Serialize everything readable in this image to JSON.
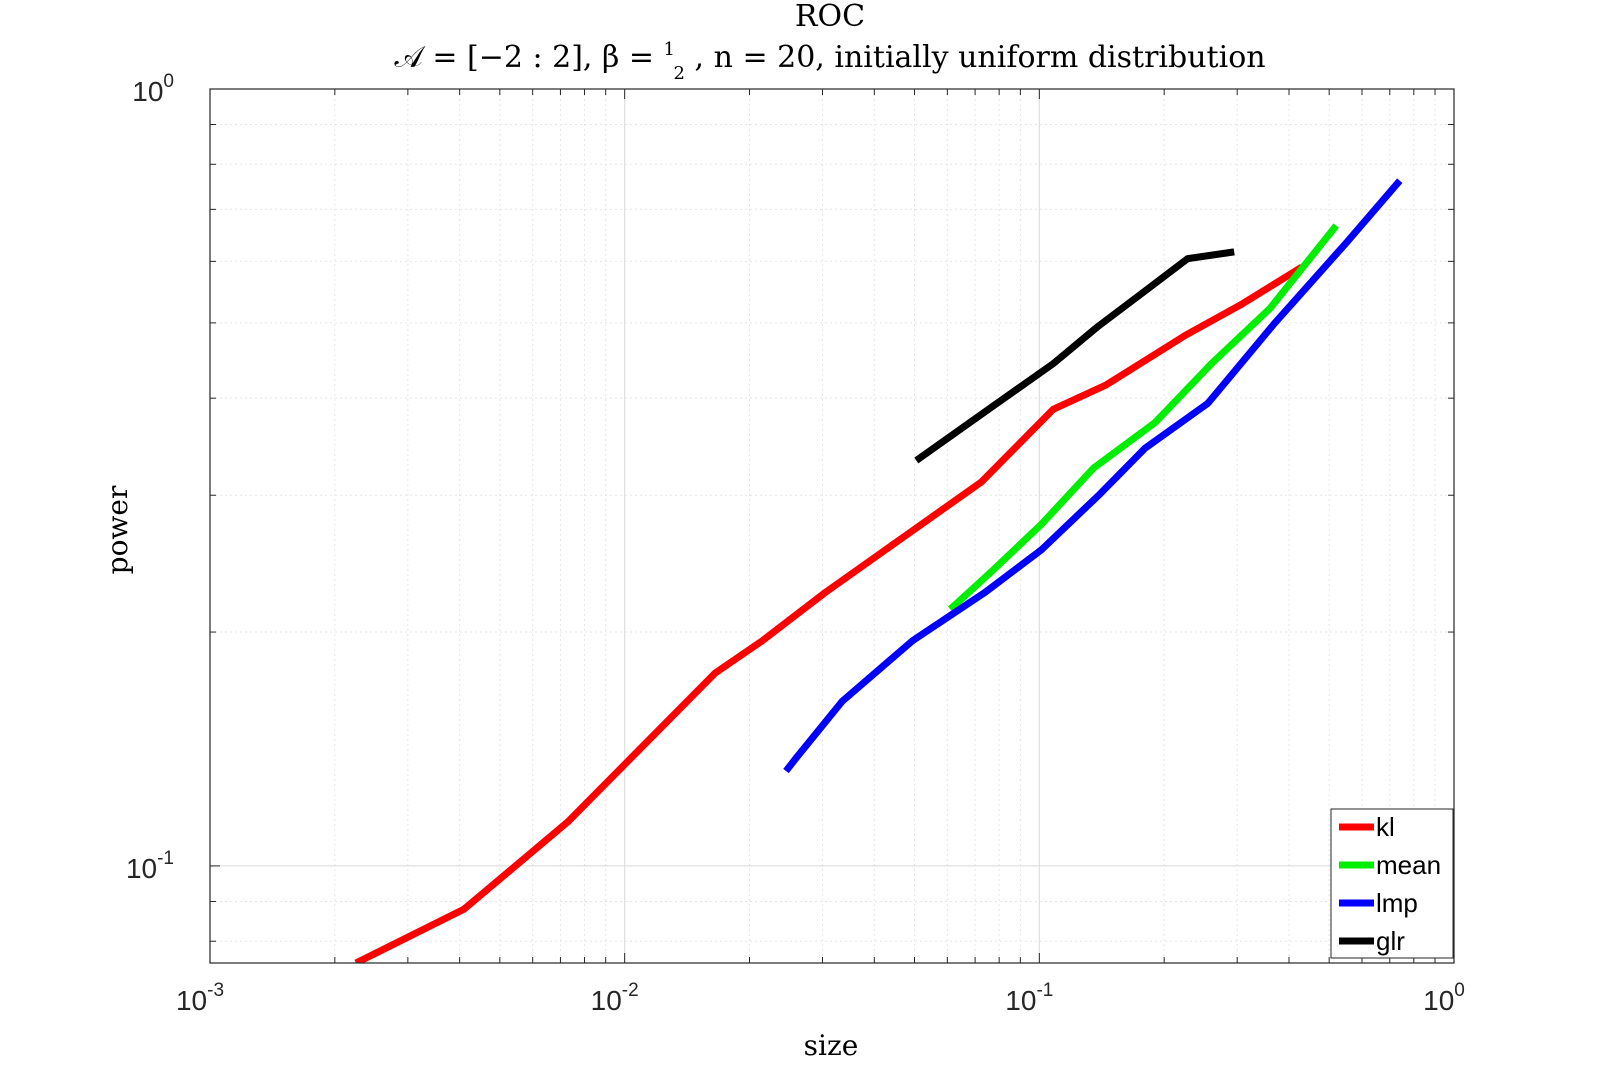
{
  "chart_data": {
    "type": "line",
    "title": "ROC",
    "subtitle": {
      "part1": "𝒜 = [−2 : 2], β = ",
      "frac_num": "1",
      "frac_den": "2",
      "part2": ", n = 20, initially uniform distribution"
    },
    "xlabel": "size",
    "ylabel": "power",
    "xscale": "log",
    "yscale": "log",
    "xlim": [
      0.001,
      1
    ],
    "ylim": [
      0.075,
      1
    ],
    "xticks": [
      {
        "mantissa": "10",
        "exp": "-3"
      },
      {
        "mantissa": "10",
        "exp": "-2"
      },
      {
        "mantissa": "10",
        "exp": "-1"
      },
      {
        "mantissa": "10",
        "exp": "0"
      }
    ],
    "yticks": [
      {
        "mantissa": "10",
        "exp": "-1"
      },
      {
        "mantissa": "10",
        "exp": "0"
      }
    ],
    "grid": true,
    "legend_position": "bottom-right",
    "series": [
      {
        "name": "kl",
        "color": "#ff0000",
        "points": [
          [
            0.00225,
            0.075
          ],
          [
            0.0041,
            0.088
          ],
          [
            0.0073,
            0.114
          ],
          [
            0.0165,
            0.177
          ],
          [
            0.0215,
            0.195
          ],
          [
            0.0305,
            0.225
          ],
          [
            0.0475,
            0.266
          ],
          [
            0.0725,
            0.312
          ],
          [
            0.108,
            0.387
          ],
          [
            0.145,
            0.416
          ],
          [
            0.225,
            0.482
          ],
          [
            0.305,
            0.527
          ],
          [
            0.43,
            0.59
          ]
        ]
      },
      {
        "name": "mean",
        "color": "#00ee00",
        "points": [
          [
            0.061,
            0.214
          ],
          [
            0.0765,
            0.239
          ],
          [
            0.101,
            0.275
          ],
          [
            0.135,
            0.325
          ],
          [
            0.19,
            0.372
          ],
          [
            0.26,
            0.443
          ],
          [
            0.36,
            0.522
          ],
          [
            0.52,
            0.667
          ]
        ]
      },
      {
        "name": "lmp",
        "color": "#0000ff",
        "points": [
          [
            0.0245,
            0.1325
          ],
          [
            0.026,
            0.138
          ],
          [
            0.0335,
            0.163
          ],
          [
            0.0495,
            0.195
          ],
          [
            0.074,
            0.225
          ],
          [
            0.101,
            0.255
          ],
          [
            0.14,
            0.301
          ],
          [
            0.18,
            0.345
          ],
          [
            0.255,
            0.394
          ],
          [
            0.37,
            0.5
          ],
          [
            0.55,
            0.634
          ],
          [
            0.74,
            0.762
          ]
        ]
      },
      {
        "name": "glr",
        "color": "#000000",
        "points": [
          [
            0.0505,
            0.3325
          ],
          [
            0.078,
            0.392
          ],
          [
            0.108,
            0.443
          ],
          [
            0.138,
            0.494
          ],
          [
            0.228,
            0.605
          ],
          [
            0.295,
            0.617
          ]
        ]
      }
    ]
  }
}
